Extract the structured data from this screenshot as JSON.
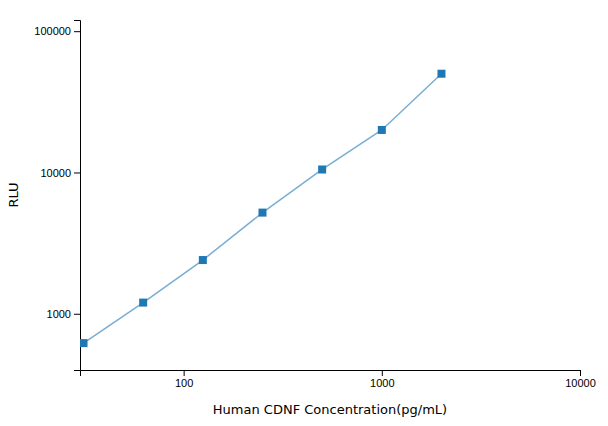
{
  "chart_data": {
    "type": "line",
    "xlabel": "Human CDNF Concentration(pg/mL)",
    "ylabel": "RLU",
    "x": [
      31.25,
      62.5,
      125,
      250,
      500,
      1000,
      2000
    ],
    "series": [
      {
        "values": [
          620,
          1200,
          2400,
          5200,
          10500,
          20000,
          50000
        ],
        "marker": "square"
      }
    ],
    "xlim": [
      30,
      10000
    ],
    "ylim": [
      400,
      120000
    ],
    "xticks": [
      100,
      1000,
      10000
    ],
    "yticks": [
      1000,
      10000,
      100000
    ],
    "log": true,
    "grid": false
  }
}
